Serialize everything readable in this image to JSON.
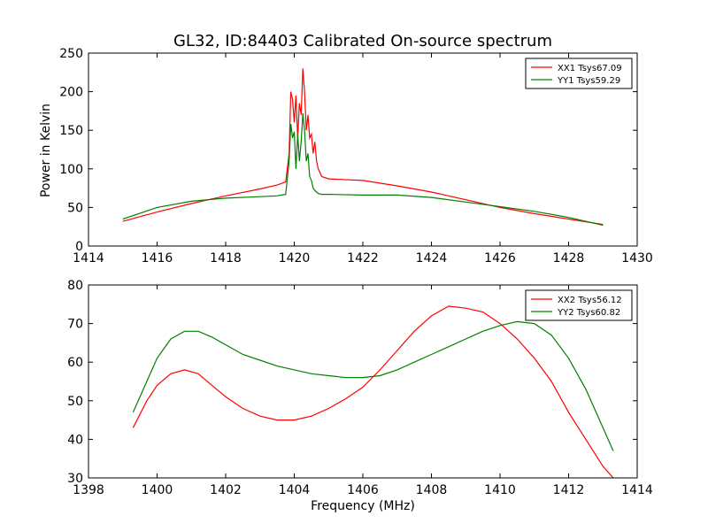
{
  "chart_data": [
    {
      "type": "line",
      "title": "GL32, ID:84403 Calibrated On-source spectrum",
      "xlabel": "",
      "ylabel": "Power in Kelvin",
      "xlim": [
        1414,
        1430
      ],
      "ylim": [
        0,
        250
      ],
      "xticks": [
        "1414",
        "1416",
        "1418",
        "1420",
        "1422",
        "1424",
        "1426",
        "1428",
        "1430"
      ],
      "yticks": [
        "0",
        "50",
        "100",
        "150",
        "200",
        "250"
      ],
      "legend_position": "top-right",
      "grid": false,
      "series": [
        {
          "name": "XX1 Tsys67.09",
          "color": "#ff0000",
          "x": [
            1415.0,
            1416.0,
            1417.0,
            1418.0,
            1419.0,
            1419.5,
            1419.75,
            1419.85,
            1419.9,
            1419.95,
            1420.0,
            1420.05,
            1420.1,
            1420.15,
            1420.2,
            1420.25,
            1420.3,
            1420.35,
            1420.4,
            1420.45,
            1420.5,
            1420.55,
            1420.6,
            1420.65,
            1420.7,
            1420.8,
            1421.0,
            1422.0,
            1423.0,
            1424.0,
            1425.0,
            1426.0,
            1427.0,
            1428.0,
            1429.0
          ],
          "y": [
            32,
            44,
            55,
            65,
            74,
            79,
            83,
            120,
            200,
            190,
            160,
            195,
            140,
            185,
            170,
            230,
            200,
            150,
            170,
            140,
            145,
            120,
            135,
            110,
            100,
            90,
            87,
            85,
            78,
            70,
            60,
            50,
            42,
            35,
            28
          ]
        },
        {
          "name": "YY1 Tsys59.29",
          "color": "#008000",
          "x": [
            1415.0,
            1416.0,
            1417.0,
            1418.0,
            1419.0,
            1419.5,
            1419.75,
            1419.85,
            1419.9,
            1419.95,
            1420.0,
            1420.05,
            1420.1,
            1420.15,
            1420.2,
            1420.25,
            1420.3,
            1420.35,
            1420.4,
            1420.45,
            1420.5,
            1420.55,
            1420.6,
            1420.65,
            1420.7,
            1420.8,
            1421.0,
            1422.0,
            1423.0,
            1424.0,
            1425.0,
            1426.0,
            1427.0,
            1428.0,
            1429.0
          ],
          "y": [
            35,
            50,
            58,
            62,
            64,
            65,
            67,
            110,
            158,
            140,
            148,
            100,
            145,
            110,
            135,
            172,
            150,
            110,
            120,
            90,
            85,
            75,
            72,
            70,
            68,
            67,
            67,
            66,
            66,
            63,
            57,
            51,
            45,
            37,
            27
          ]
        }
      ]
    },
    {
      "type": "line",
      "title": "",
      "xlabel": "Frequency (MHz)",
      "ylabel": "",
      "xlim": [
        1398,
        1414
      ],
      "ylim": [
        30,
        80
      ],
      "xticks": [
        "1398",
        "1400",
        "1402",
        "1404",
        "1406",
        "1408",
        "1410",
        "1412",
        "1414"
      ],
      "yticks": [
        "30",
        "40",
        "50",
        "60",
        "70",
        "80"
      ],
      "legend_position": "top-right",
      "grid": false,
      "series": [
        {
          "name": "XX2 Tsys56.12",
          "color": "#ff0000",
          "x": [
            1399.3,
            1399.7,
            1400.0,
            1400.4,
            1400.8,
            1401.2,
            1401.6,
            1402.0,
            1402.5,
            1403.0,
            1403.5,
            1404.0,
            1404.5,
            1405.0,
            1405.5,
            1406.0,
            1406.5,
            1407.0,
            1407.5,
            1408.0,
            1408.5,
            1409.0,
            1409.5,
            1410.0,
            1410.5,
            1411.0,
            1411.5,
            1412.0,
            1412.5,
            1413.0,
            1413.3
          ],
          "y": [
            43,
            50,
            54,
            57,
            58,
            57,
            54,
            51,
            48,
            46,
            45,
            45,
            46,
            48,
            50.5,
            53.5,
            58,
            63,
            68,
            72,
            74.5,
            74,
            73,
            70,
            66,
            61,
            55,
            47,
            40,
            33,
            30
          ]
        },
        {
          "name": "YY2 Tsys60.82",
          "color": "#008000",
          "x": [
            1399.3,
            1399.7,
            1400.0,
            1400.4,
            1400.8,
            1401.2,
            1401.6,
            1402.0,
            1402.5,
            1403.0,
            1403.5,
            1404.0,
            1404.5,
            1405.0,
            1405.5,
            1406.0,
            1406.5,
            1407.0,
            1407.5,
            1408.0,
            1408.5,
            1409.0,
            1409.5,
            1410.0,
            1410.5,
            1411.0,
            1411.5,
            1412.0,
            1412.5,
            1413.0,
            1413.3
          ],
          "y": [
            47,
            55,
            61,
            66,
            68,
            68,
            66.5,
            64.5,
            62,
            60.5,
            59,
            58,
            57,
            56.5,
            56,
            56,
            56.5,
            58,
            60,
            62,
            64,
            66,
            68,
            69.5,
            70.5,
            70,
            67,
            61,
            53,
            43,
            37
          ]
        }
      ]
    }
  ]
}
